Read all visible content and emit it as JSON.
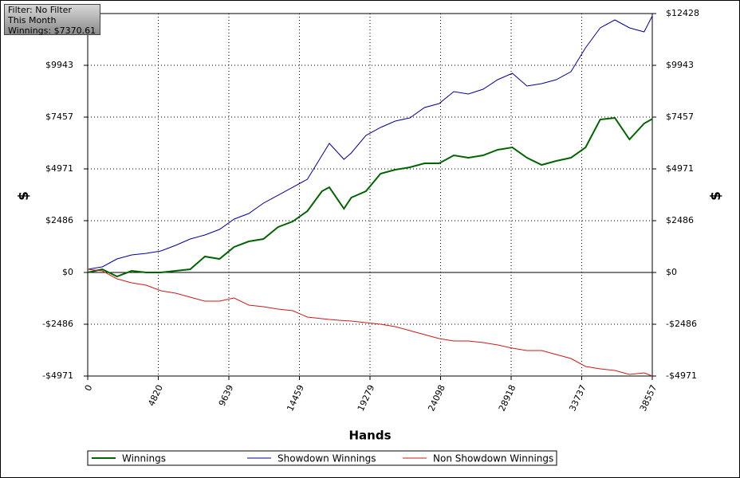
{
  "filter_box": [
    "Filter: No Filter",
    "This Month",
    "Winnings: $7370.61"
  ],
  "chart_data": {
    "type": "line",
    "x_label": "Hands",
    "y_label": "$",
    "y2_label": "$",
    "x": [
      0,
      1000,
      2000,
      3000,
      4000,
      5000,
      6000,
      7000,
      8000,
      9000,
      10000,
      11000,
      12000,
      13000,
      14000,
      15000,
      16000,
      16500,
      17500,
      18000,
      19000,
      20000,
      21000,
      22000,
      23000,
      24000,
      25000,
      26000,
      27000,
      28000,
      29000,
      30000,
      31000,
      32000,
      33000,
      34000,
      35000,
      36000,
      37000,
      38000,
      38557
    ],
    "series": [
      {
        "name": "Winnings",
        "color": "#006400",
        "width": 2,
        "values": [
          0,
          153,
          -191,
          76,
          0,
          0,
          76,
          153,
          765,
          650,
          1224,
          1491,
          1606,
          2180,
          2447,
          2944,
          3900,
          4091,
          3059,
          3594,
          3900,
          4741,
          4932,
          5047,
          5238,
          5238,
          5621,
          5506,
          5621,
          5889,
          6003,
          5506,
          5162,
          5353,
          5506,
          6003,
          7342,
          7419,
          6386,
          7151,
          7371
        ]
      },
      {
        "name": "Showdown Winnings",
        "color": "#00009c",
        "width": 1,
        "values": [
          153,
          268,
          650,
          841,
          918,
          1032,
          1300,
          1606,
          1797,
          2065,
          2562,
          2829,
          3327,
          3709,
          4091,
          4474,
          5621,
          6195,
          5430,
          5736,
          6577,
          6960,
          7266,
          7419,
          7916,
          8107,
          8681,
          8566,
          8795,
          9254,
          9560,
          8948,
          9063,
          9254,
          9636,
          10784,
          11740,
          12122,
          11740,
          11549,
          12313
        ]
      },
      {
        "name": "Non Showdown Winnings",
        "color": "#cc1a1a",
        "width": 1,
        "values": [
          153,
          76,
          -306,
          -497,
          -612,
          -880,
          -994,
          -1185,
          -1377,
          -1377,
          -1224,
          -1568,
          -1644,
          -1759,
          -1835,
          -2141,
          -2218,
          -2256,
          -2313,
          -2333,
          -2409,
          -2486,
          -2600,
          -2792,
          -2983,
          -3174,
          -3289,
          -3289,
          -3365,
          -3480,
          -3633,
          -3748,
          -3748,
          -3939,
          -4130,
          -4512,
          -4627,
          -4703,
          -4895,
          -4818,
          -4971
        ]
      }
    ],
    "xlim": [
      0,
      38557
    ],
    "xticks": [
      0,
      4820,
      9639,
      14459,
      19279,
      24098,
      28918,
      33737,
      38557
    ],
    "ylim": [
      -4971,
      12428
    ],
    "yticks": [
      {
        "value": -4971,
        "label": "-$4971"
      },
      {
        "value": -2486,
        "label": "-$2486"
      },
      {
        "value": 0,
        "label": "$0"
      },
      {
        "value": 2486,
        "label": "$2486"
      },
      {
        "value": 4971,
        "label": "$4971"
      },
      {
        "value": 7457,
        "label": "$7457"
      },
      {
        "value": 9943,
        "label": "$9943"
      },
      {
        "value": 12428,
        "label": "$12428"
      }
    ],
    "grid": true,
    "zero_line": true
  }
}
